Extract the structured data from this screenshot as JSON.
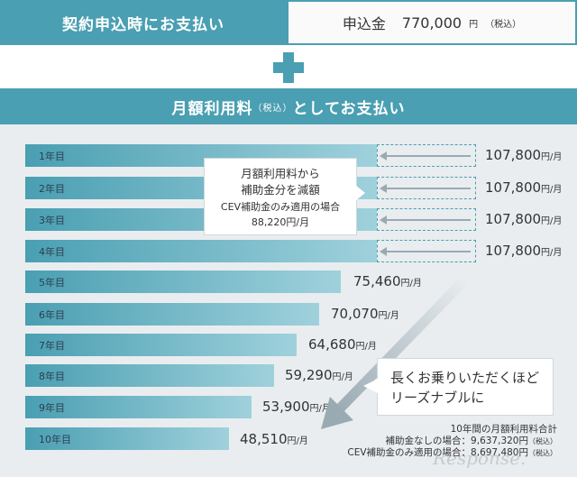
{
  "top": {
    "left_label": "契約申込時にお支払い",
    "right_label": "申込金",
    "right_amount": "770,000",
    "right_unit": "円",
    "right_tax": "（税込）"
  },
  "plus_icon": "plus-icon",
  "monthly_header": {
    "title": "月額利用料",
    "tax": "（税込）",
    "suffix": "としてお支払い"
  },
  "years": [
    {
      "label": "1年目",
      "price": "107,800",
      "unit": "円/月"
    },
    {
      "label": "2年目",
      "price": "107,800",
      "unit": "円/月"
    },
    {
      "label": "3年目",
      "price": "107,800",
      "unit": "円/月"
    },
    {
      "label": "4年目",
      "price": "107,800",
      "unit": "円/月"
    },
    {
      "label": "5年目",
      "price": "75,460",
      "unit": "円/月"
    },
    {
      "label": "6年目",
      "price": "70,070",
      "unit": "円/月"
    },
    {
      "label": "7年目",
      "price": "64,680",
      "unit": "円/月"
    },
    {
      "label": "8年目",
      "price": "59,290",
      "unit": "円/月"
    },
    {
      "label": "9年目",
      "price": "53,900",
      "unit": "円/月"
    },
    {
      "label": "10年目",
      "price": "48,510",
      "unit": "円/月"
    }
  ],
  "callout_subsidy": {
    "line1": "月額利用料から",
    "line2": "補助金分を減額",
    "line3": "CEV補助金のみ適用の場合",
    "line4": "88,220円/月"
  },
  "callout_longer": {
    "line1": "長くお乗りいただくほど",
    "line2": "リーズナブルに"
  },
  "summary": {
    "line1": "10年間の月額利用料合計",
    "line2": "補助金なしの場合：9,637,320円",
    "line2_tax": "（税込）",
    "line3": "CEV補助金のみ適用の場合：8,697,480円",
    "line3_tax": "（税込）"
  },
  "watermark": "Response.",
  "colors": {
    "accent": "#4a9fb2",
    "panel_bg": "#e9edef",
    "arrow_grey": "#9aaab3"
  }
}
